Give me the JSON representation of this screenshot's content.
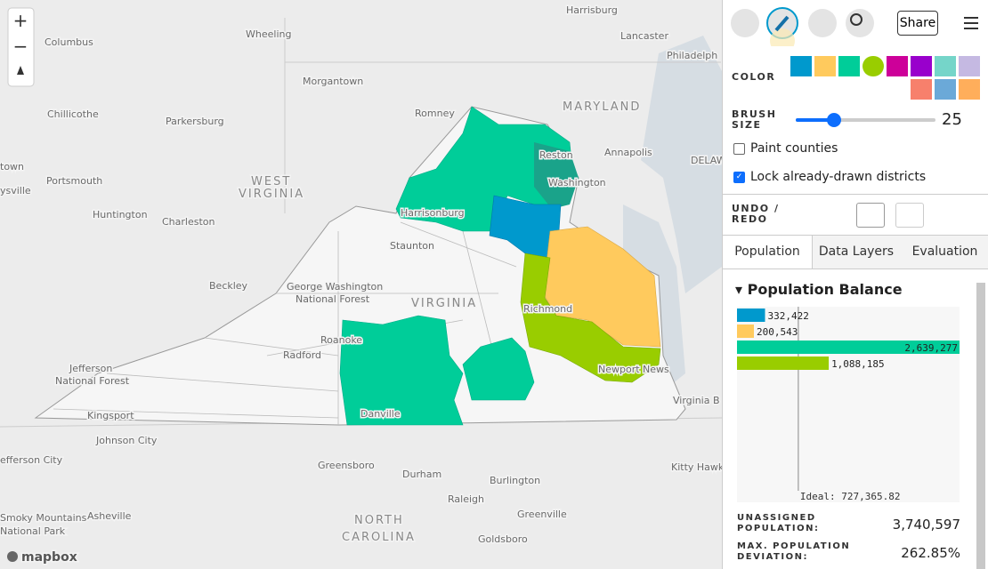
{
  "map": {
    "labels": [
      "Columbus",
      "Wheeling",
      "Harrisburg",
      "Lancaster",
      "Philadelph",
      "Morgantown",
      "MARYLAND",
      "Romney",
      "Chillicothe",
      "Parkersburg",
      "Annapolis",
      "Reston",
      "Washington",
      "WEST",
      "VIRGINIA",
      "Portsmouth",
      "Huntington",
      "Charleston",
      "Harrisonburg",
      "Staunton",
      "Beckley",
      "George Washington",
      "National Forest",
      "VIRGINIA",
      "Richmond",
      "Roanoke",
      "Radford",
      "Jefferson",
      "National Forest",
      "Kingsport",
      "Danville",
      "Newport News",
      "Virginia B",
      "Johnson City",
      "efferson City",
      "Greensboro",
      "Durham",
      "Burlington",
      "Raleigh",
      "Kitty Hawk",
      "NORTH",
      "CAROLINA",
      "Asheville",
      "Greenville",
      "Goldsboro",
      "Smoky Mountains",
      "National Park",
      "town",
      "ysville",
      "DELAW"
    ],
    "zoom_in": "+",
    "zoom_out": "−",
    "attribution": "mapbox"
  },
  "toolbar": {
    "share": "Share"
  },
  "brush": {
    "color_label": "COLOR",
    "colors": [
      "#0099cd",
      "#ffca5d",
      "#00cd99",
      "#99cd00",
      "#cd0099",
      "#9900cc",
      "#75d5c9",
      "#c5b9e2",
      "#f7806c",
      "#6ba9d8",
      "#ffae5b"
    ],
    "selected": 3,
    "size_label": "BRUSH SIZE",
    "size": 25
  },
  "options": [
    {
      "label": "Paint counties",
      "checked": false
    },
    {
      "label": "Lock already-drawn districts",
      "checked": true
    }
  ],
  "undo_redo": "UNDO / REDO",
  "tabs": [
    "Population",
    "Data Layers",
    "Evaluation"
  ],
  "population_balance": {
    "title": "Population Balance",
    "colors": [
      "#0099cd",
      "#ffca5d",
      "#00cd99",
      "#99cd00"
    ],
    "values": [
      332422,
      200543,
      2639277,
      1088185
    ],
    "value_labels": [
      "332,422",
      "200,543",
      "2,639,277",
      "1,088,185"
    ],
    "xlim": [
      0,
      2639277
    ],
    "ideal": {
      "value": 727365.82,
      "label": "Ideal: 727,365.82"
    },
    "stats": [
      {
        "label": "UNASSIGNED POPULATION:",
        "value": "3,740,597"
      },
      {
        "label": "MAX. POPULATION DEVIATION:",
        "value": "262.85%"
      }
    ]
  }
}
